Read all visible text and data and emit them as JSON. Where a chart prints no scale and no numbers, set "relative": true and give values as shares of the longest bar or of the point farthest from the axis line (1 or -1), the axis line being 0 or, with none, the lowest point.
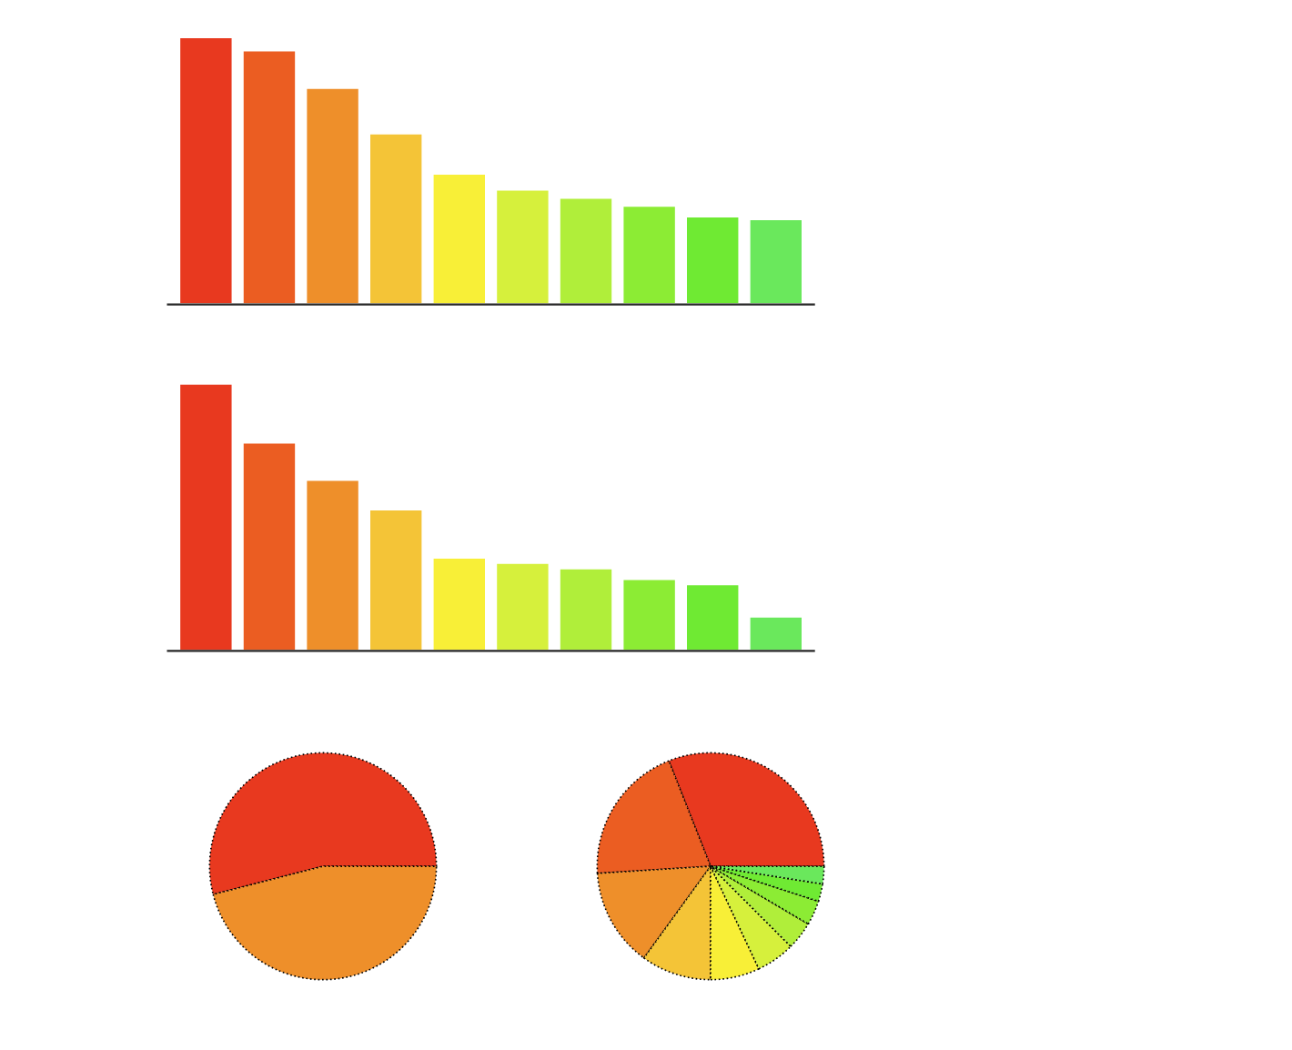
{
  "chart_data": [
    {
      "type": "bar",
      "relative": true,
      "categories": [
        null,
        null,
        null,
        null,
        null,
        null,
        null,
        null,
        null,
        null
      ],
      "values": [
        1,
        0.95,
        0.81,
        0.64,
        0.49,
        0.43,
        0.4,
        0.37,
        0.33,
        0.32
      ],
      "colors": [
        "#e8391f",
        "#eb5d22",
        "#ee8f2a",
        "#f4c437",
        "#f8ef37",
        "#d6f03c",
        "#b0ee3a",
        "#8cec34",
        "#6fea33",
        "#6ae85c"
      ]
    },
    {
      "type": "bar",
      "relative": true,
      "categories": [
        null,
        null,
        null,
        null,
        null,
        null,
        null,
        null,
        null,
        null
      ],
      "values": [
        1,
        0.78,
        0.64,
        0.53,
        0.35,
        0.33,
        0.31,
        0.27,
        0.25,
        0.13
      ],
      "colors": [
        "#e8391f",
        "#eb5d22",
        "#ee8f2a",
        "#f4c437",
        "#f8ef37",
        "#d6f03c",
        "#b0ee3a",
        "#8cec34",
        "#6fea33",
        "#6ae85c"
      ]
    },
    {
      "type": "pie",
      "categories": [
        null,
        null
      ],
      "values": [
        54,
        46
      ],
      "colors": [
        "#e8391f",
        "#ee8f2a"
      ]
    },
    {
      "type": "pie",
      "categories": [
        null,
        null,
        null,
        null,
        null,
        null,
        null,
        null,
        null,
        null
      ],
      "values": [
        31,
        20,
        14,
        10,
        7,
        5.5,
        4,
        3.5,
        2.5,
        2.5
      ],
      "colors": [
        "#e8391f",
        "#eb5d22",
        "#ee8f2a",
        "#f4c437",
        "#f8ef37",
        "#d6f03c",
        "#b0ee3a",
        "#8cec34",
        "#6fea33",
        "#6ae85c"
      ]
    }
  ]
}
